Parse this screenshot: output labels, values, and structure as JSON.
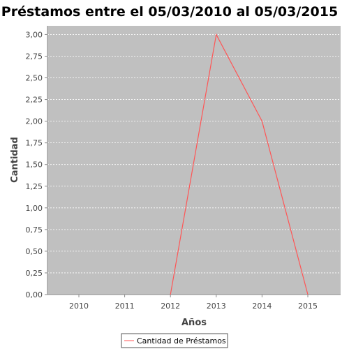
{
  "chart_data": {
    "type": "line",
    "title": "Préstamos entre el  05/03/2010 al 05/03/2015",
    "xlabel": "Años",
    "ylabel": "Cantidad",
    "categories": [
      "2010",
      "2011",
      "2012",
      "2013",
      "2014",
      "2015"
    ],
    "series": [
      {
        "name": "Cantidad de Préstamos",
        "x": [
          "2012",
          "2013",
          "2014",
          "2015"
        ],
        "values": [
          0,
          3,
          2,
          0
        ],
        "color": "#ff5555"
      }
    ],
    "ylim": [
      0,
      3.1
    ],
    "yticks": [
      0,
      0.25,
      0.5,
      0.75,
      1,
      1.25,
      1.5,
      1.75,
      2,
      2.25,
      2.5,
      2.75,
      3
    ],
    "ytick_labels": [
      "0,00",
      "0,25",
      "0,50",
      "0,75",
      "1,00",
      "1,25",
      "1,50",
      "1,75",
      "2,00",
      "2,25",
      "2,50",
      "2,75",
      "3,00"
    ],
    "grid": true,
    "legend": "bottom-center",
    "plot_background": "#c0c0c0"
  }
}
